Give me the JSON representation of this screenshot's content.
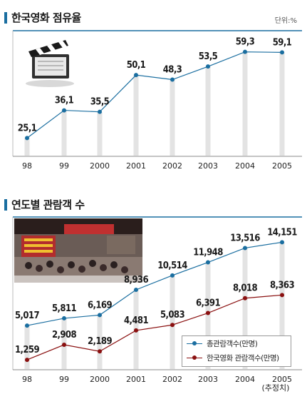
{
  "colors": {
    "accent": "#1a6ea0",
    "series_total": "#1a6ea0",
    "series_korean": "#8a1010"
  },
  "section1": {
    "title": "한국영화 점유율",
    "unit": "단위:%"
  },
  "section2": {
    "title": "연도별 관람객 수",
    "footnote": "(추정치)"
  },
  "chart_data": [
    {
      "type": "line",
      "title": "한국영화 점유율",
      "categories": [
        "98",
        "99",
        "2000",
        "2001",
        "2002",
        "2003",
        "2004",
        "2005"
      ],
      "series": [
        {
          "values": [
            25.1,
            36.1,
            35.5,
            50.1,
            48.3,
            53.5,
            59.3,
            59.1
          ],
          "labels": [
            "25,1",
            "36,1",
            "35,5",
            "50,1",
            "48,3",
            "53,5",
            "59,3",
            "59,1"
          ]
        }
      ],
      "grid": false
    },
    {
      "type": "line",
      "title": "연도별 관람객 수",
      "categories": [
        "98",
        "99",
        "2000",
        "2001",
        "2002",
        "2003",
        "2004",
        "2005"
      ],
      "series": [
        {
          "name": "총관람객수(만명)",
          "values": [
            5017,
            5811,
            6169,
            8936,
            10514,
            11948,
            13516,
            14151
          ],
          "labels": [
            "5,017",
            "5,811",
            "6,169",
            "8,936",
            "10,514",
            "11,948",
            "13,516",
            "14,151"
          ]
        },
        {
          "name": "한국영화 관람객수(만명)",
          "values": [
            1259,
            2908,
            2189,
            4481,
            5083,
            6391,
            8018,
            8363
          ],
          "labels": [
            "1,259",
            "2,908",
            "2,189",
            "4,481",
            "5,083",
            "6,391",
            "8,018",
            "8,363"
          ]
        }
      ],
      "legend": "bottom-right",
      "grid": false
    }
  ]
}
